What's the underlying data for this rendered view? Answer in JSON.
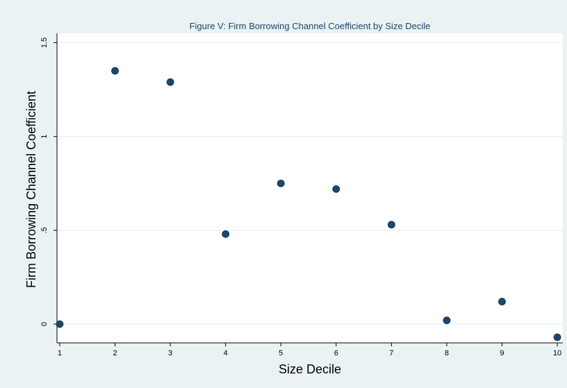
{
  "colors": {
    "background": "#eaf2f3",
    "plot_background": "#ffffff",
    "marker": "#1a476f",
    "title": "#1a476f",
    "grid": "#eaf2f3",
    "axis": "#000000"
  },
  "chart_data": {
    "type": "scatter",
    "title": "Figure V: Firm Borrowing Channel Coefficient by Size Decile",
    "xlabel": "Size Decile",
    "ylabel": "Firm Borrowing Channel Coefficient",
    "x": [
      1,
      2,
      3,
      4,
      5,
      6,
      7,
      8,
      9,
      10
    ],
    "y": [
      0.0,
      1.35,
      1.29,
      0.48,
      0.75,
      0.72,
      0.53,
      0.02,
      0.12,
      -0.07
    ],
    "xlim": [
      0.95,
      10.1
    ],
    "ylim": [
      -0.1,
      1.55
    ],
    "xticks": [
      "1",
      "2",
      "3",
      "4",
      "5",
      "6",
      "7",
      "8",
      "9",
      "10"
    ],
    "xtick_values": [
      1,
      2,
      3,
      4,
      5,
      6,
      7,
      8,
      9,
      10
    ],
    "yticks": [
      "0",
      ".5",
      "1",
      "1.5"
    ],
    "ytick_values": [
      0,
      0.5,
      1,
      1.5
    ],
    "grid": true,
    "legend": "none"
  }
}
